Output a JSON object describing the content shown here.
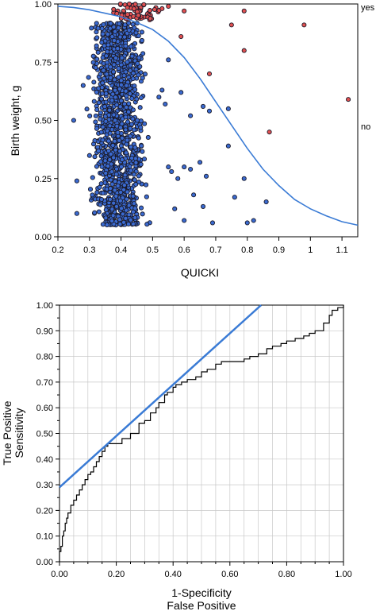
{
  "chart_data": [
    {
      "type": "scatter",
      "xlabel": "QUICKI",
      "ylabel": "Birth weight, g",
      "xlim": [
        0.2,
        1.15
      ],
      "ylim": [
        0.0,
        1.0
      ],
      "xticks": [
        "0.2",
        "0.3",
        "0.4",
        "0.5",
        "0.6",
        "0.7",
        "0.8",
        "0.9",
        "1",
        "1.1"
      ],
      "yticks": [
        "0.00",
        "0.25",
        "0.50",
        "0.75",
        "1.00"
      ],
      "right_labels": [
        "yes",
        "no"
      ],
      "colors": {
        "blue_points": "#3a6ad0",
        "red_points": "#e05050",
        "point_outline": "#1a1a2a",
        "curve": "#3a7bd5"
      },
      "series": [
        {
          "role": "dense_cluster",
          "color": "blue",
          "x_range": [
            0.28,
            0.5
          ],
          "y_range": [
            0.05,
            0.92
          ],
          "approx_points": 1200
        },
        {
          "role": "scattered",
          "color": "blue",
          "points": [
            [
              0.25,
              0.5
            ],
            [
              0.26,
              0.24
            ],
            [
              0.26,
              0.1
            ],
            [
              0.28,
              0.65
            ],
            [
              0.52,
              0.6
            ],
            [
              0.53,
              0.63
            ],
            [
              0.54,
              0.57
            ],
            [
              0.55,
              0.76
            ],
            [
              0.55,
              0.3
            ],
            [
              0.56,
              0.28
            ],
            [
              0.57,
              0.12
            ],
            [
              0.58,
              0.25
            ],
            [
              0.59,
              0.62
            ],
            [
              0.6,
              0.07
            ],
            [
              0.6,
              0.3
            ],
            [
              0.62,
              0.29
            ],
            [
              0.62,
              0.52
            ],
            [
              0.63,
              0.18
            ],
            [
              0.66,
              0.13
            ],
            [
              0.66,
              0.56
            ],
            [
              0.67,
              0.26
            ],
            [
              0.68,
              0.54
            ],
            [
              0.69,
              0.06
            ],
            [
              0.74,
              0.39
            ],
            [
              0.76,
              0.17
            ],
            [
              0.79,
              0.25
            ],
            [
              0.8,
              0.06
            ],
            [
              0.82,
              0.07
            ],
            [
              0.86,
              0.15
            ],
            [
              0.74,
              0.55
            ],
            [
              0.65,
              0.32
            ]
          ]
        },
        {
          "role": "cluster_top",
          "color": "red",
          "x_range": [
            0.33,
            0.56
          ],
          "y_range": [
            0.93,
            1.0
          ],
          "approx_points": 60
        },
        {
          "role": "scattered_top",
          "color": "red",
          "points": [
            [
              0.6,
              0.97
            ],
            [
              0.59,
              0.86
            ],
            [
              0.68,
              0.7
            ],
            [
              0.75,
              0.91
            ],
            [
              0.79,
              0.97
            ],
            [
              0.79,
              0.8
            ],
            [
              0.87,
              0.45
            ],
            [
              0.98,
              0.91
            ],
            [
              1.12,
              0.59
            ],
            [
              0.53,
              0.98
            ],
            [
              0.55,
              0.99
            ]
          ]
        }
      ],
      "curve": {
        "name": "logistic fit",
        "x": [
          0.2,
          0.25,
          0.3,
          0.35,
          0.4,
          0.45,
          0.5,
          0.55,
          0.6,
          0.65,
          0.7,
          0.75,
          0.8,
          0.85,
          0.9,
          0.95,
          1.0,
          1.05,
          1.1,
          1.15
        ],
        "y": [
          0.99,
          0.985,
          0.975,
          0.96,
          0.945,
          0.92,
          0.89,
          0.84,
          0.77,
          0.68,
          0.58,
          0.48,
          0.38,
          0.29,
          0.22,
          0.16,
          0.12,
          0.09,
          0.065,
          0.05
        ]
      }
    },
    {
      "type": "line",
      "xlabel_line1": "1-Specificity",
      "xlabel_line2": "False Positive",
      "ylabel_line1": "True Positive",
      "ylabel_line2": "Sensitivity",
      "xlim": [
        0.0,
        1.0
      ],
      "ylim": [
        0.0,
        1.0
      ],
      "xticks": [
        "0.00",
        "0.20",
        "0.40",
        "0.60",
        "0.80",
        "1.00"
      ],
      "yticks": [
        "0.00",
        "0.10",
        "0.20",
        "0.30",
        "0.40",
        "0.50",
        "0.60",
        "0.70",
        "0.80",
        "0.90",
        "1.00"
      ],
      "grid": true,
      "colors": {
        "roc": "#000000",
        "tangent": "#3a7bd5",
        "grid": "#c8c8c8"
      },
      "series": [
        {
          "role": "roc_curve",
          "x": [
            0.0,
            0.0,
            0.005,
            0.01,
            0.015,
            0.02,
            0.025,
            0.03,
            0.04,
            0.05,
            0.06,
            0.07,
            0.08,
            0.09,
            0.1,
            0.11,
            0.12,
            0.13,
            0.14,
            0.15,
            0.16,
            0.17,
            0.18,
            0.19,
            0.2,
            0.22,
            0.25,
            0.28,
            0.3,
            0.32,
            0.34,
            0.35,
            0.37,
            0.38,
            0.4,
            0.41,
            0.43,
            0.45,
            0.48,
            0.5,
            0.52,
            0.55,
            0.57,
            0.6,
            0.62,
            0.65,
            0.67,
            0.7,
            0.73,
            0.75,
            0.78,
            0.8,
            0.83,
            0.86,
            0.88,
            0.9,
            0.93,
            0.95,
            0.96,
            0.98,
            1.0
          ],
          "y": [
            0.0,
            0.04,
            0.06,
            0.1,
            0.12,
            0.15,
            0.17,
            0.19,
            0.22,
            0.24,
            0.26,
            0.28,
            0.3,
            0.32,
            0.34,
            0.35,
            0.37,
            0.39,
            0.41,
            0.43,
            0.45,
            0.46,
            0.46,
            0.46,
            0.46,
            0.48,
            0.5,
            0.54,
            0.55,
            0.58,
            0.6,
            0.62,
            0.65,
            0.66,
            0.68,
            0.69,
            0.7,
            0.71,
            0.72,
            0.74,
            0.75,
            0.77,
            0.78,
            0.78,
            0.78,
            0.79,
            0.8,
            0.81,
            0.83,
            0.84,
            0.85,
            0.86,
            0.87,
            0.88,
            0.89,
            0.9,
            0.93,
            0.96,
            0.98,
            0.99,
            1.0
          ]
        },
        {
          "role": "tangent_line",
          "x": [
            0.0,
            0.71
          ],
          "y": [
            0.29,
            1.0
          ]
        }
      ]
    }
  ]
}
